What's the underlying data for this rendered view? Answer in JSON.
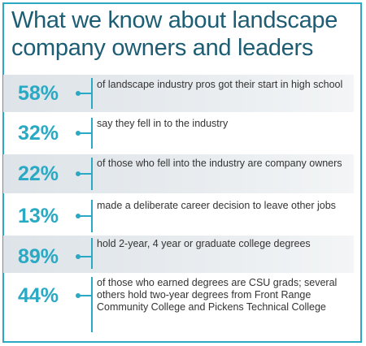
{
  "title_line1": "What we know about landscape",
  "title_line2": "company owners and leaders",
  "stats": [
    {
      "value": "58%",
      "text": "of landscape industry pros got their start in high school"
    },
    {
      "value": "32%",
      "text": "say they fell in to the industry"
    },
    {
      "value": "22%",
      "text": "of those who fell into the industry are company owners"
    },
    {
      "value": "13%",
      "text": "made a deliberate career decision to leave other jobs"
    },
    {
      "value": "89%",
      "text": "hold 2-year, 4 year or graduate college degrees"
    },
    {
      "value": "44%",
      "text": "of those who earned degrees are CSU grads; several others hold two-year degrees from Front Range Community College and Pickens Technical College"
    }
  ],
  "colors": {
    "accent": "#2aa9c4",
    "title": "#1d5d74",
    "shade": "#dde3e8"
  }
}
